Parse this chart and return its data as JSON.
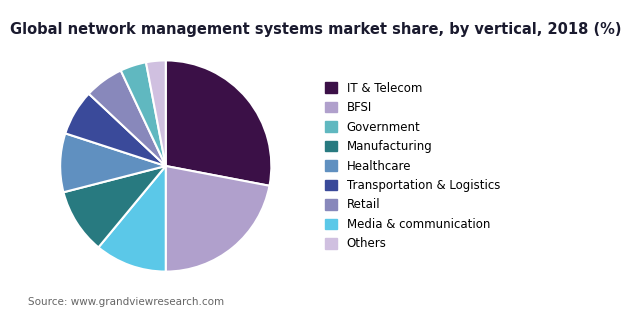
{
  "title": "Global network management systems market share, by vertical, 2018 (%)",
  "source": "Source: www.grandviewresearch.com",
  "pie_order": [
    "IT & Telecom",
    "BFSI",
    "Media & communication",
    "Manufacturing",
    "Healthcare",
    "Transportation & Logistics",
    "Retail",
    "Government",
    "Others"
  ],
  "values": [
    28,
    22,
    11,
    10,
    9,
    7,
    6,
    4,
    3
  ],
  "pie_colors": [
    "#3b1047",
    "#b0a0cc",
    "#5bc8e8",
    "#287a80",
    "#6090c0",
    "#3a4a9a",
    "#8888bb",
    "#60b8c0",
    "#d0c0e0"
  ],
  "legend_order": [
    "IT & Telecom",
    "BFSI",
    "Government",
    "Manufacturing",
    "Healthcare",
    "Transportation & Logistics",
    "Retail",
    "Media & communication",
    "Others"
  ],
  "legend_colors": [
    "#3b1047",
    "#b0a0cc",
    "#60b8c0",
    "#287a80",
    "#6090c0",
    "#3a4a9a",
    "#8888bb",
    "#5bc8e8",
    "#d0c0e0"
  ],
  "background_color": "#ffffff",
  "title_fontsize": 10.5,
  "legend_fontsize": 8.5,
  "source_fontsize": 7.5,
  "header_bar_color": "#5a2080"
}
